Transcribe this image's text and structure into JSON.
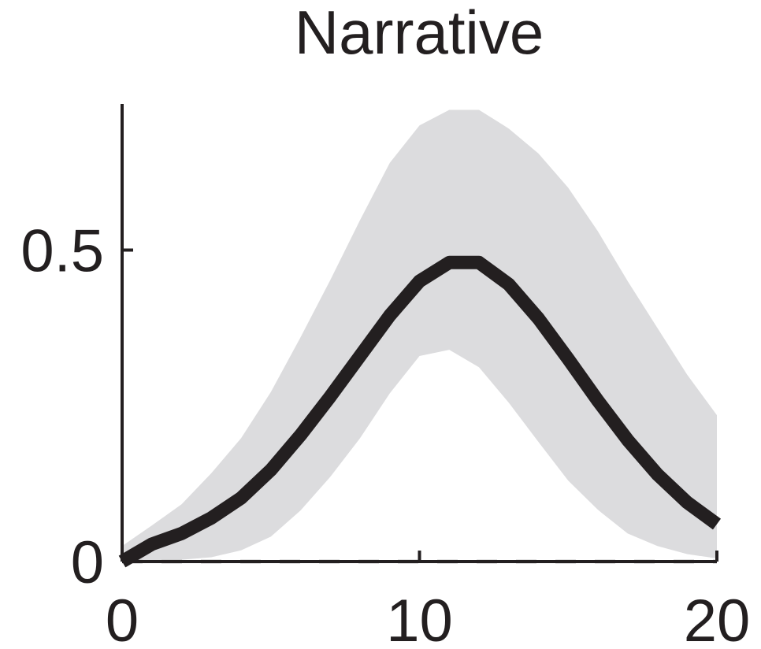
{
  "chart_data": {
    "type": "line",
    "title": "Narrative",
    "xlabel": "",
    "ylabel": "",
    "xlim": [
      0,
      20
    ],
    "ylim": [
      0,
      0.78
    ],
    "xticks": [
      {
        "value": 0,
        "label": "0"
      },
      {
        "value": 10,
        "label": "10"
      },
      {
        "value": 20,
        "label": "20"
      }
    ],
    "yticks": [
      {
        "value": 0,
        "label": "0"
      },
      {
        "value": 0.5,
        "label": "0.5"
      }
    ],
    "grid": false,
    "series": [
      {
        "x": [
          0,
          1,
          2,
          3,
          4,
          5,
          6,
          7,
          8,
          9,
          10,
          11,
          12,
          13,
          14,
          15,
          16,
          17,
          18,
          19,
          20
        ],
        "y": [
          0.0,
          0.028,
          0.045,
          0.07,
          0.102,
          0.147,
          0.203,
          0.265,
          0.33,
          0.395,
          0.45,
          0.48,
          0.48,
          0.445,
          0.39,
          0.325,
          0.258,
          0.195,
          0.14,
          0.095,
          0.06
        ],
        "lower": [
          0.0,
          0.0,
          0.003,
          0.007,
          0.018,
          0.04,
          0.082,
          0.136,
          0.198,
          0.27,
          0.33,
          0.34,
          0.312,
          0.255,
          0.192,
          0.13,
          0.083,
          0.045,
          0.025,
          0.012,
          0.005
        ],
        "upper": [
          0.025,
          0.058,
          0.092,
          0.142,
          0.198,
          0.272,
          0.36,
          0.452,
          0.548,
          0.64,
          0.7,
          0.725,
          0.725,
          0.695,
          0.655,
          0.6,
          0.53,
          0.45,
          0.375,
          0.3,
          0.235
        ]
      }
    ],
    "colors": {
      "line": "#231f20",
      "band": "#dcdcde",
      "axis": "#231f20",
      "baseline": "#c0c0c0"
    }
  }
}
